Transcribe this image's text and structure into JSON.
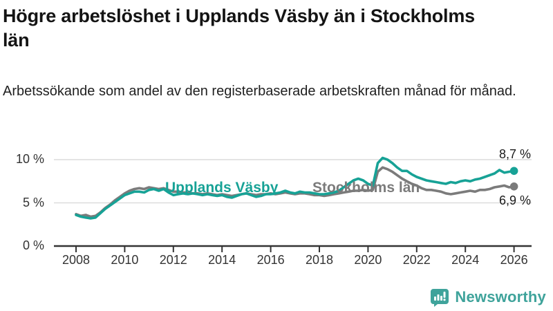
{
  "header": {
    "title": "Högre arbetslöshet i Upplands Väsby än i Stockholms län",
    "subtitle": "Arbetssökande som andel av den registerbaserade arbetskraften månad för månad."
  },
  "footer": {
    "brand": "Newsworthy",
    "brand_color": "#3fa39b",
    "logo_icon": "bar-chart-speech-bubble-icon"
  },
  "chart_data": {
    "type": "line",
    "unit": "%",
    "grid": "horizontal",
    "legend": "inline-labels",
    "xlim": [
      2008,
      2026.1
    ],
    "ylim": [
      0,
      11.5
    ],
    "x_ticks": [
      2008,
      2010,
      2012,
      2014,
      2016,
      2018,
      2020,
      2022,
      2024,
      2026
    ],
    "y_ticks": [
      {
        "value": 0,
        "label": "0 %"
      },
      {
        "value": 5,
        "label": "5 %"
      },
      {
        "value": 10,
        "label": "10 %"
      }
    ],
    "x": [
      2008,
      2008.2,
      2008.4,
      2008.6,
      2008.8,
      2009,
      2009.2,
      2009.4,
      2009.6,
      2009.8,
      2010,
      2010.2,
      2010.4,
      2010.6,
      2010.8,
      2011,
      2011.2,
      2011.4,
      2011.6,
      2011.8,
      2012,
      2012.2,
      2012.4,
      2012.6,
      2012.8,
      2013,
      2013.2,
      2013.4,
      2013.6,
      2013.8,
      2014,
      2014.2,
      2014.4,
      2014.6,
      2014.8,
      2015,
      2015.2,
      2015.4,
      2015.6,
      2015.8,
      2016,
      2016.2,
      2016.4,
      2016.6,
      2016.8,
      2017,
      2017.2,
      2017.4,
      2017.6,
      2017.8,
      2018,
      2018.2,
      2018.4,
      2018.6,
      2018.8,
      2019,
      2019.2,
      2019.4,
      2019.6,
      2019.8,
      2020,
      2020.2,
      2020.4,
      2020.6,
      2020.8,
      2021,
      2021.2,
      2021.4,
      2021.6,
      2021.8,
      2022,
      2022.2,
      2022.4,
      2022.6,
      2022.8,
      2023,
      2023.2,
      2023.4,
      2023.6,
      2023.8,
      2024,
      2024.2,
      2024.4,
      2024.6,
      2024.8,
      2025,
      2025.2,
      2025.4,
      2025.6,
      2025.8,
      2026
    ],
    "series": [
      {
        "name": "Upplands Väsby",
        "color": "#17a296",
        "end_label": "8,7 %",
        "end_value": 8.7,
        "values": [
          3.6,
          3.4,
          3.3,
          3.2,
          3.3,
          3.8,
          4.3,
          4.7,
          5.1,
          5.5,
          5.9,
          6.1,
          6.3,
          6.3,
          6.2,
          6.5,
          6.6,
          6.4,
          6.6,
          6.2,
          5.9,
          6.0,
          6.1,
          6.0,
          6.1,
          6.0,
          5.9,
          6.0,
          5.9,
          5.8,
          5.9,
          5.7,
          5.6,
          5.8,
          6.0,
          6.1,
          5.9,
          5.7,
          5.8,
          6.0,
          6.0,
          6.1,
          6.2,
          6.4,
          6.2,
          6.1,
          6.3,
          6.2,
          6.2,
          6.1,
          6.0,
          6.0,
          6.1,
          6.2,
          6.4,
          6.8,
          7.2,
          7.6,
          7.8,
          7.6,
          7.2,
          7.0,
          9.6,
          10.2,
          10.0,
          9.6,
          9.1,
          8.7,
          8.7,
          8.3,
          8.0,
          7.8,
          7.6,
          7.5,
          7.4,
          7.3,
          7.2,
          7.4,
          7.3,
          7.5,
          7.6,
          7.5,
          7.7,
          7.8,
          8.0,
          8.2,
          8.4,
          8.8,
          8.5,
          8.6,
          8.7
        ]
      },
      {
        "name": "Stockholms län",
        "color": "#7b7b7b",
        "end_label": "6,9 %",
        "end_value": 6.9,
        "values": [
          3.7,
          3.5,
          3.6,
          3.4,
          3.5,
          3.9,
          4.4,
          4.8,
          5.3,
          5.7,
          6.1,
          6.4,
          6.6,
          6.7,
          6.6,
          6.8,
          6.7,
          6.6,
          6.7,
          6.5,
          6.3,
          6.3,
          6.2,
          6.2,
          6.1,
          6.1,
          6.0,
          6.1,
          6.0,
          5.9,
          6.0,
          5.9,
          5.8,
          5.9,
          6.0,
          6.1,
          6.0,
          5.9,
          6.0,
          6.0,
          6.1,
          6.0,
          6.1,
          6.2,
          6.1,
          6.0,
          6.1,
          6.1,
          6.0,
          5.9,
          5.9,
          5.8,
          5.9,
          6.0,
          6.1,
          6.2,
          6.3,
          6.4,
          6.4,
          6.5,
          6.4,
          6.5,
          8.6,
          9.1,
          8.9,
          8.6,
          8.2,
          7.8,
          7.5,
          7.2,
          7.0,
          6.7,
          6.5,
          6.5,
          6.4,
          6.3,
          6.1,
          6.0,
          6.1,
          6.2,
          6.3,
          6.4,
          6.3,
          6.5,
          6.5,
          6.6,
          6.8,
          6.9,
          7.0,
          6.8,
          6.9
        ]
      }
    ]
  }
}
